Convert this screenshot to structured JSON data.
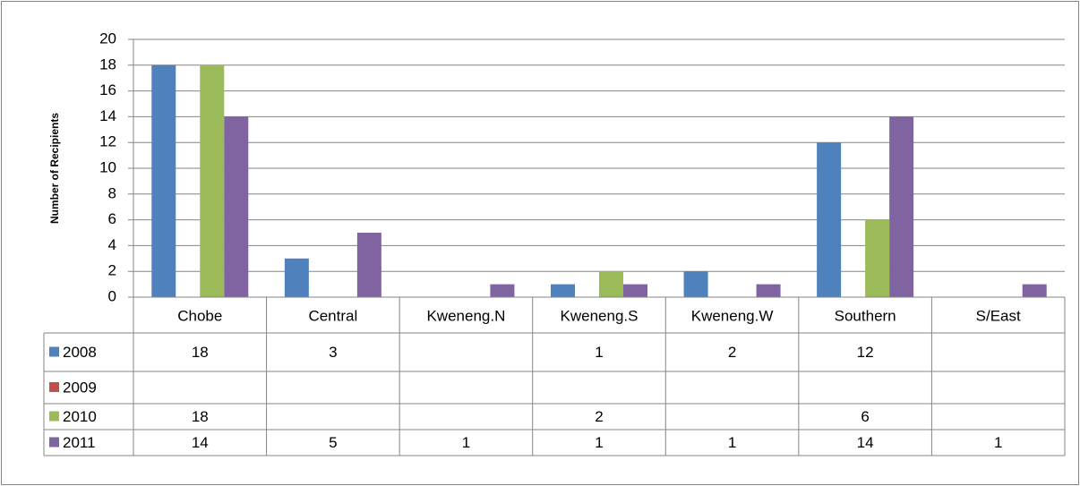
{
  "chart_data": {
    "type": "bar",
    "y_label": "Number of Recipients",
    "categories": [
      "Chobe",
      "Central",
      "Kweneng.N",
      "Kweneng.S",
      "Kweneng.W",
      "Southern",
      "S/East"
    ],
    "series": [
      {
        "name": "2008",
        "color": "#4f81bd",
        "values": [
          18,
          3,
          null,
          1,
          2,
          12,
          null
        ]
      },
      {
        "name": "2009",
        "color": "#c0504d",
        "values": [
          null,
          null,
          null,
          null,
          null,
          null,
          null
        ]
      },
      {
        "name": "2010",
        "color": "#9bbb59",
        "values": [
          18,
          null,
          null,
          2,
          null,
          6,
          null
        ]
      },
      {
        "name": "2011",
        "color": "#8064a2",
        "values": [
          14,
          5,
          1,
          1,
          1,
          14,
          1
        ]
      }
    ],
    "ylim": [
      0,
      20
    ],
    "yticks": [
      0,
      2,
      4,
      6,
      8,
      10,
      12,
      14,
      16,
      18,
      20
    ],
    "grid": true,
    "data_table": true
  }
}
